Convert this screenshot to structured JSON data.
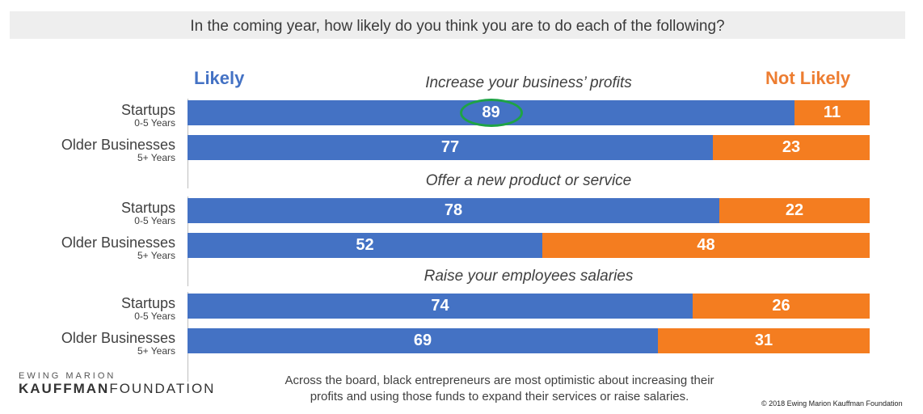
{
  "header": {
    "title": "In the coming year, how likely do you think you are to do each of the following?"
  },
  "legend": {
    "likely": "Likely",
    "not_likely": "Not Likely"
  },
  "colors": {
    "likely": "#4472c4",
    "not_likely": "#f47d20",
    "highlight": "#1ea345"
  },
  "chart_data": {
    "type": "bar",
    "orientation": "horizontal",
    "stacked": true,
    "series": [
      {
        "name": "Likely"
      },
      {
        "name": "Not Likely"
      }
    ],
    "groups": [
      {
        "question": "Increase your business’ profits",
        "rows": [
          {
            "label": "Startups",
            "sublabel": "0-5 Years",
            "likely": 89,
            "not_likely": 11,
            "highlighted": true
          },
          {
            "label": "Older Businesses",
            "sublabel": "5+ Years",
            "likely": 77,
            "not_likely": 23
          }
        ]
      },
      {
        "question": "Offer a new product or service",
        "rows": [
          {
            "label": "Startups",
            "sublabel": "0-5 Years",
            "likely": 78,
            "not_likely": 22
          },
          {
            "label": "Older Businesses",
            "sublabel": "5+ Years",
            "likely": 52,
            "not_likely": 48
          }
        ]
      },
      {
        "question": "Raise your employees salaries",
        "rows": [
          {
            "label": "Startups",
            "sublabel": "0-5 Years",
            "likely": 74,
            "not_likely": 26
          },
          {
            "label": "Older Businesses",
            "sublabel": "5+ Years",
            "likely": 69,
            "not_likely": 31
          }
        ]
      }
    ],
    "xlim": [
      0,
      100
    ]
  },
  "footer": {
    "logo_top": "EWING MARION",
    "logo_bold": "KAUFFMAN",
    "logo_rest": "FOUNDATION",
    "note_line1": "Across the board, black entrepreneurs are most optimistic about increasing their",
    "note_line2": "profits and using those funds to expand their services or raise salaries.",
    "copyright": "© 2018 Ewing Marion Kauffman Foundation"
  }
}
